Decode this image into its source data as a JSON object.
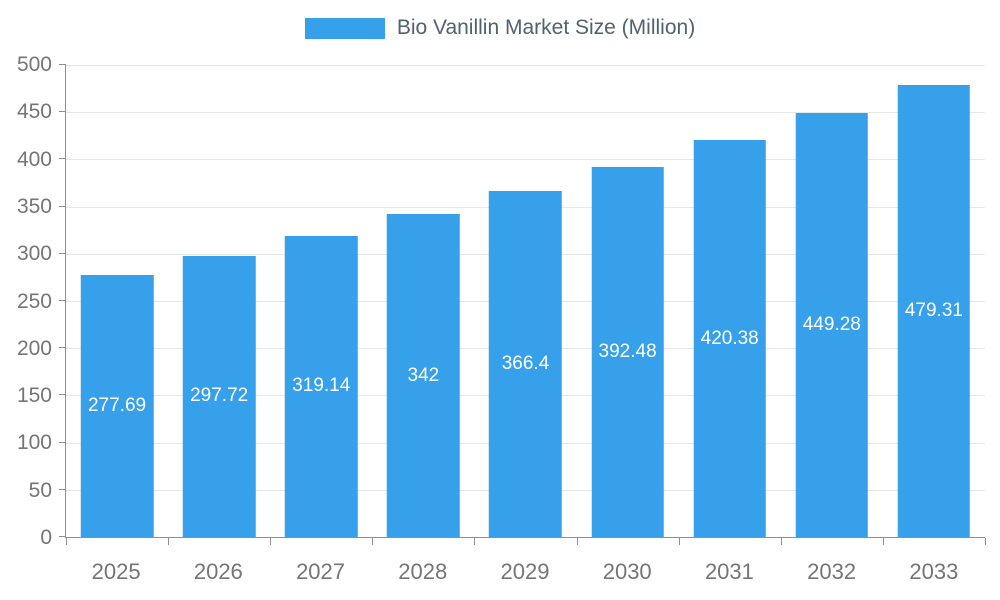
{
  "chart_data": {
    "type": "bar",
    "title": "Bio Vanillin Market Size (Million)",
    "categories": [
      "2025",
      "2026",
      "2027",
      "2028",
      "2029",
      "2030",
      "2031",
      "2032",
      "2033"
    ],
    "values": [
      277.69,
      297.72,
      319.14,
      342,
      366.4,
      392.48,
      420.38,
      449.28,
      479.31
    ],
    "xlabel": "",
    "ylabel": "",
    "ylim": [
      0,
      500
    ],
    "ytick_step": 50,
    "grid": true,
    "legend_position": "top-center",
    "bar_color": "#36a0ea",
    "bar_label_color": "#ffffff",
    "axis_line_color": "#8f8f8f",
    "gridline_color": "#e7e7e7",
    "tick_label_color": "#757575",
    "legend_text_color": "#51626f"
  }
}
